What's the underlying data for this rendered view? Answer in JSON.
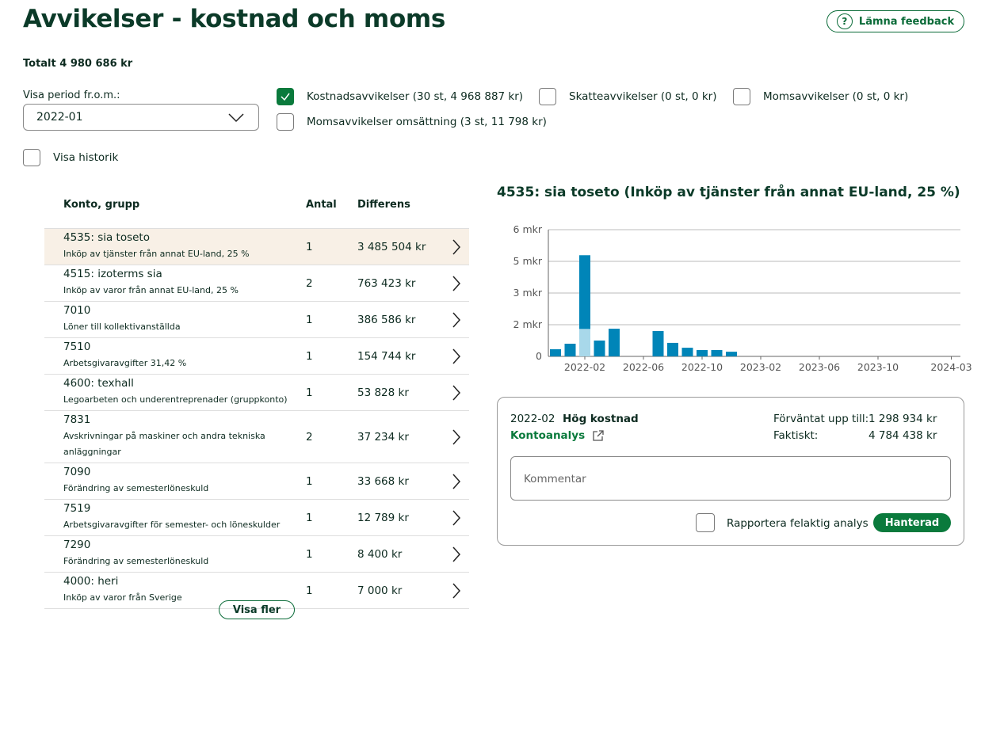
{
  "header": {
    "title": "Avvikelser - kostnad och moms",
    "feedback": "Lämna feedback",
    "total": "Totalt 4 980 686 kr"
  },
  "filters": {
    "period_label": "Visa period fr.o.m.:",
    "period": "2022-01",
    "options": [
      {
        "label": "Kostnadsavvikelser (30 st, 4 968 887 kr)",
        "checked": true
      },
      {
        "label": "Skatteavvikelser (0 st, 0 kr)",
        "checked": false
      },
      {
        "label": "Momsavvikelser (0 st, 0 kr)",
        "checked": false
      },
      {
        "label": "Momsavvikelser omsättning (3 st, 11 798 kr)",
        "checked": false
      }
    ],
    "history": {
      "label": "Visa historik",
      "checked": false
    }
  },
  "table": {
    "headers": [
      "Konto, grupp",
      "Antal",
      "Differens"
    ],
    "selected": 0,
    "rows": [
      {
        "account": "4535: sia toseto",
        "group": "Inköp av tjänster från annat EU-land, 25 %",
        "count": 1,
        "diff": "3 485 504 kr"
      },
      {
        "account": "4515: izoterms sia",
        "group": "Inköp av varor från annat EU-land, 25 %",
        "count": 2,
        "diff": "763 423 kr"
      },
      {
        "account": "7010",
        "group": "Löner till kollektivanställda",
        "count": 1,
        "diff": "386 586 kr"
      },
      {
        "account": "7510",
        "group": "Arbetsgivaravgifter 31,42 %",
        "count": 1,
        "diff": "154 744 kr"
      },
      {
        "account": "4600: texhall",
        "group": "Legoarbeten och underentreprenader (gruppkonto)",
        "count": 1,
        "diff": "53 828 kr"
      },
      {
        "account": "7831",
        "group": "Avskrivningar på maskiner och andra tekniska anläggningar",
        "count": 2,
        "diff": "37 234 kr"
      },
      {
        "account": "7090",
        "group": "Förändring av semesterlöneskuld",
        "count": 1,
        "diff": "33 668 kr"
      },
      {
        "account": "7519",
        "group": "Arbetsgivaravgifter för semester- och löneskulder",
        "count": 1,
        "diff": "12 789 kr"
      },
      {
        "account": "7290",
        "group": "Förändring av semesterlöneskuld",
        "count": 1,
        "diff": "8 400 kr"
      },
      {
        "account": "4000: heri",
        "group": "Inköp av varor från Sverige",
        "count": 1,
        "diff": "7 000 kr"
      }
    ],
    "more": "Visa fler"
  },
  "chart_data": {
    "type": "bar",
    "stacked": true,
    "title": "4535: sia toseto (Inköp av tjänster från annat EU-land, 25 %)",
    "x": [
      "2021-12",
      "2022-01",
      "2022-02",
      "2022-03",
      "2022-04",
      "2022-05",
      "2022-06",
      "2022-07",
      "2022-08",
      "2022-09",
      "2022-10",
      "2022-11",
      "2022-12"
    ],
    "series": [
      {
        "color": "#a8d8ea",
        "values": [
          null,
          null,
          1.3,
          null,
          null,
          null,
          null,
          null,
          null,
          null,
          null,
          null,
          null
        ]
      },
      {
        "color": "#0085b8",
        "values": [
          0.34,
          0.6,
          3.49,
          0.75,
          1.31,
          null,
          null,
          1.2,
          0.64,
          0.41,
          0.3,
          0.3,
          0.22
        ]
      }
    ],
    "xlim": [
      "2021-11",
      "2024-04"
    ],
    "xticks": [
      "2022-02",
      "2022-06",
      "2022-10",
      "2023-02",
      "2023-06",
      "2023-10",
      "2024-03"
    ],
    "ylim": [
      0,
      6
    ],
    "yticks": [
      0,
      {
        "value": 1.5,
        "label": "2 mkr"
      },
      {
        "value": 3,
        "label": "3 mkr"
      },
      {
        "value": 4.5,
        "label": "5 mkr"
      },
      {
        "value": 6,
        "label": "6 mkr"
      }
    ],
    "grid": true
  },
  "detail": {
    "period": "2022-02",
    "status": "Hög kostnad",
    "link": "Kontoanalys",
    "expected_label": "Förväntat upp till:",
    "expected": "1 298 934 kr",
    "actual_label": "Faktiskt:",
    "actual": "4 784 438 kr",
    "comment_placeholder": "Kommentar",
    "report": {
      "label": "Rapportera felaktig analys",
      "checked": false
    },
    "button": "Hanterad"
  }
}
